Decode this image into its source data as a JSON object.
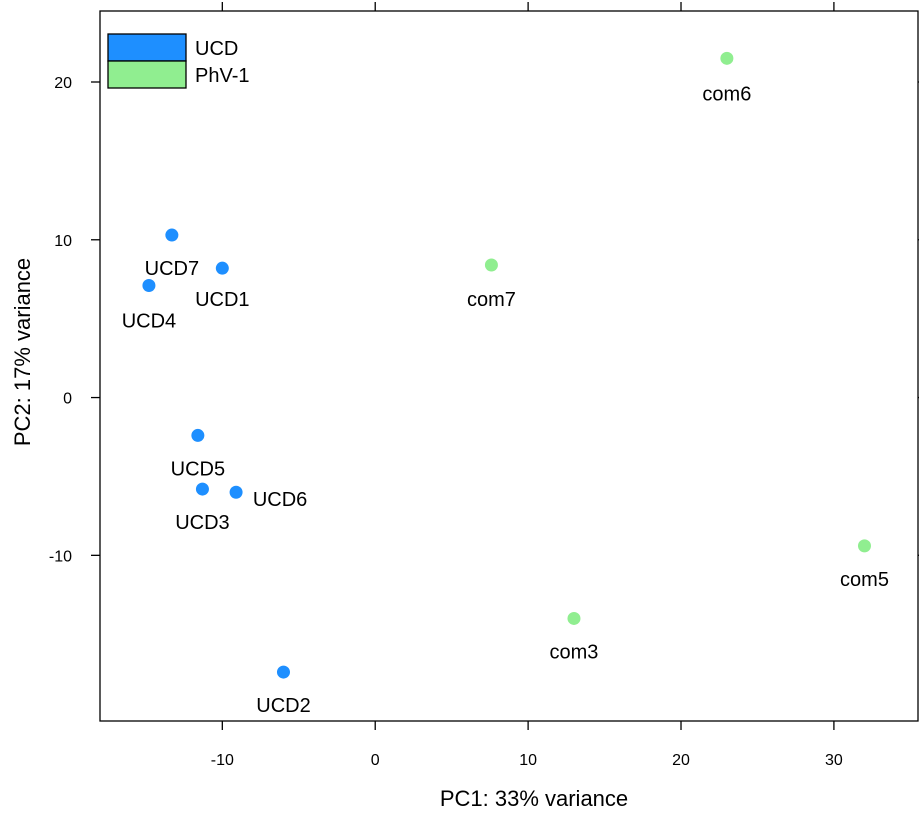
{
  "chart_data": {
    "type": "scatter",
    "xlabel": "PC1: 33% variance",
    "ylabel": "PC2: 17% variance",
    "xlim": [
      -18,
      35.5
    ],
    "ylim": [
      -20.5,
      24.5
    ],
    "xticks": [
      -10,
      0,
      10,
      20,
      30
    ],
    "yticks": [
      -10,
      0,
      10,
      20
    ],
    "xtick_labels": [
      "-10",
      "0",
      "10",
      "20",
      "30"
    ],
    "ytick_labels": [
      "-10",
      "0",
      "10",
      "20"
    ],
    "legend_position": "top-left",
    "grid": false,
    "series": [
      {
        "name": "UCD",
        "color": "#1E8FFF",
        "points": [
          {
            "label": "UCD1",
            "x": -10.0,
            "y": 8.2
          },
          {
            "label": "UCD2",
            "x": -6.0,
            "y": -17.4
          },
          {
            "label": "UCD3",
            "x": -11.3,
            "y": -5.8
          },
          {
            "label": "UCD4",
            "x": -14.8,
            "y": 7.1
          },
          {
            "label": "UCD5",
            "x": -11.6,
            "y": -2.4
          },
          {
            "label": "UCD6",
            "x": -9.1,
            "y": -6.0
          },
          {
            "label": "UCD7",
            "x": -13.3,
            "y": 10.3
          }
        ]
      },
      {
        "name": "PhV-1",
        "color": "#90EE90",
        "points": [
          {
            "label": "com3",
            "x": 13.0,
            "y": -14.0
          },
          {
            "label": "com5",
            "x": 32.0,
            "y": -9.4
          },
          {
            "label": "com6",
            "x": 23.0,
            "y": 21.5
          },
          {
            "label": "com7",
            "x": 7.6,
            "y": 8.4
          }
        ]
      }
    ]
  }
}
